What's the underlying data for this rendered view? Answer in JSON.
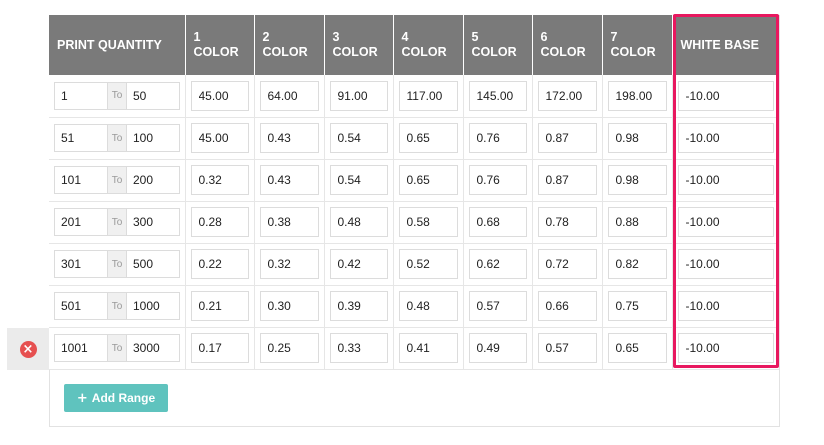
{
  "headers": {
    "print_quantity": "PRINT QUANTITY",
    "colors": [
      {
        "num": "1",
        "word": "COLOR"
      },
      {
        "num": "2",
        "word": "COLOR"
      },
      {
        "num": "3",
        "word": "COLOR"
      },
      {
        "num": "4",
        "word": "COLOR"
      },
      {
        "num": "5",
        "word": "COLOR"
      },
      {
        "num": "6",
        "word": "COLOR"
      },
      {
        "num": "7",
        "word": "COLOR"
      }
    ],
    "white_base": "WHITE BASE"
  },
  "to_label": "To",
  "rows": [
    {
      "from": "1",
      "to": "50",
      "prices": [
        "45.00",
        "64.00",
        "91.00",
        "117.00",
        "145.00",
        "172.00",
        "198.00"
      ],
      "white_base": "-10.00"
    },
    {
      "from": "51",
      "to": "100",
      "prices": [
        "45.00",
        "0.43",
        "0.54",
        "0.65",
        "0.76",
        "0.87",
        "0.98"
      ],
      "white_base": "-10.00"
    },
    {
      "from": "101",
      "to": "200",
      "prices": [
        "0.32",
        "0.43",
        "0.54",
        "0.65",
        "0.76",
        "0.87",
        "0.98"
      ],
      "white_base": "-10.00"
    },
    {
      "from": "201",
      "to": "300",
      "prices": [
        "0.28",
        "0.38",
        "0.48",
        "0.58",
        "0.68",
        "0.78",
        "0.88"
      ],
      "white_base": "-10.00"
    },
    {
      "from": "301",
      "to": "500",
      "prices": [
        "0.22",
        "0.32",
        "0.42",
        "0.52",
        "0.62",
        "0.72",
        "0.82"
      ],
      "white_base": "-10.00"
    },
    {
      "from": "501",
      "to": "1000",
      "prices": [
        "0.21",
        "0.30",
        "0.39",
        "0.48",
        "0.57",
        "0.66",
        "0.75"
      ],
      "white_base": "-10.00"
    },
    {
      "from": "1001",
      "to": "3000",
      "prices": [
        "0.17",
        "0.25",
        "0.33",
        "0.41",
        "0.49",
        "0.57",
        "0.65"
      ],
      "white_base": "-10.00"
    }
  ],
  "add_range": {
    "icon": "plus-icon",
    "label": "Add Range"
  },
  "remove_row": {
    "icon": "remove-circle-icon",
    "glyph": "×"
  },
  "colors": {
    "header_bg": "#7a7a7a",
    "highlight": "#e8185f",
    "add_button": "#5fc3be",
    "remove_icon": "#e65050"
  }
}
